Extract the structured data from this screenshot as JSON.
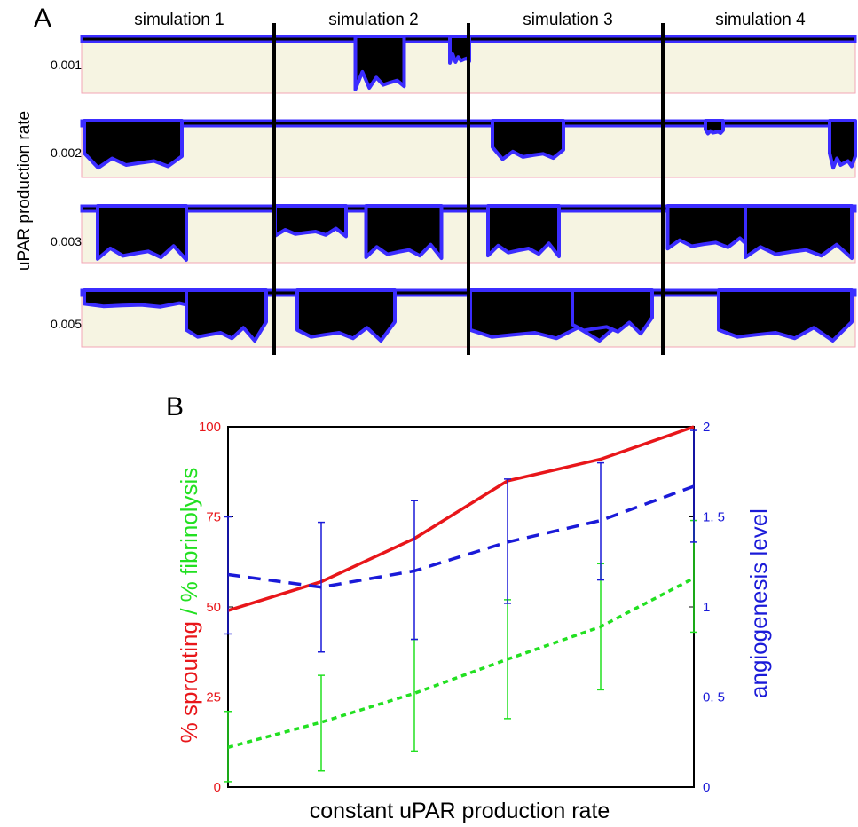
{
  "panel_a": {
    "label": "A",
    "ylabel": "uPAR production rate",
    "columns": [
      "simulation 1",
      "simulation 2",
      "simulation 3",
      "simulation 4"
    ],
    "rows": [
      "0.001",
      "0.002",
      "0.003",
      "0.005"
    ],
    "colors": {
      "tissue": "#f6f4e2",
      "vessel": "#000000",
      "cells": "#3b2cff",
      "border": "#f3a6b6"
    }
  },
  "panel_b": {
    "label": "B"
  },
  "chart_data": {
    "type": "line",
    "title": "",
    "xlabel": "constant uPAR production rate",
    "ylabel_left_parts": [
      "% sprouting",
      " / ",
      "% fibrinolysis"
    ],
    "ylabel_right": "angiogenesis level",
    "x": [
      1,
      2,
      3,
      4,
      5,
      6
    ],
    "ylim_left": [
      0,
      100
    ],
    "yticks_left": [
      "0",
      "25",
      "50",
      "75",
      "100"
    ],
    "ylim_right": [
      0,
      2
    ],
    "yticks_right": [
      "0",
      "0. 5",
      "1",
      "1. 5",
      "2"
    ],
    "grid": false,
    "series": [
      {
        "axis": "left",
        "color": "#e8161a",
        "style": "solid",
        "values": [
          49,
          57,
          69,
          85,
          91,
          100
        ]
      },
      {
        "axis": "left",
        "color": "#22e021",
        "style": "dotted",
        "values": [
          11,
          18,
          26,
          35.5,
          44.5,
          58
        ],
        "err_low": [
          1.5,
          4.5,
          10,
          19,
          27,
          43
        ],
        "err_high": [
          21,
          31,
          41,
          52,
          62,
          74
        ]
      },
      {
        "axis": "right",
        "color": "#1a1ad8",
        "style": "dashed",
        "values": [
          1.18,
          1.11,
          1.2,
          1.36,
          1.48,
          1.67
        ],
        "err_low": [
          0.85,
          0.75,
          0.82,
          1.02,
          1.15,
          1.36
        ],
        "err_high": [
          1.5,
          1.47,
          1.59,
          1.71,
          1.8,
          1.98
        ]
      }
    ]
  }
}
